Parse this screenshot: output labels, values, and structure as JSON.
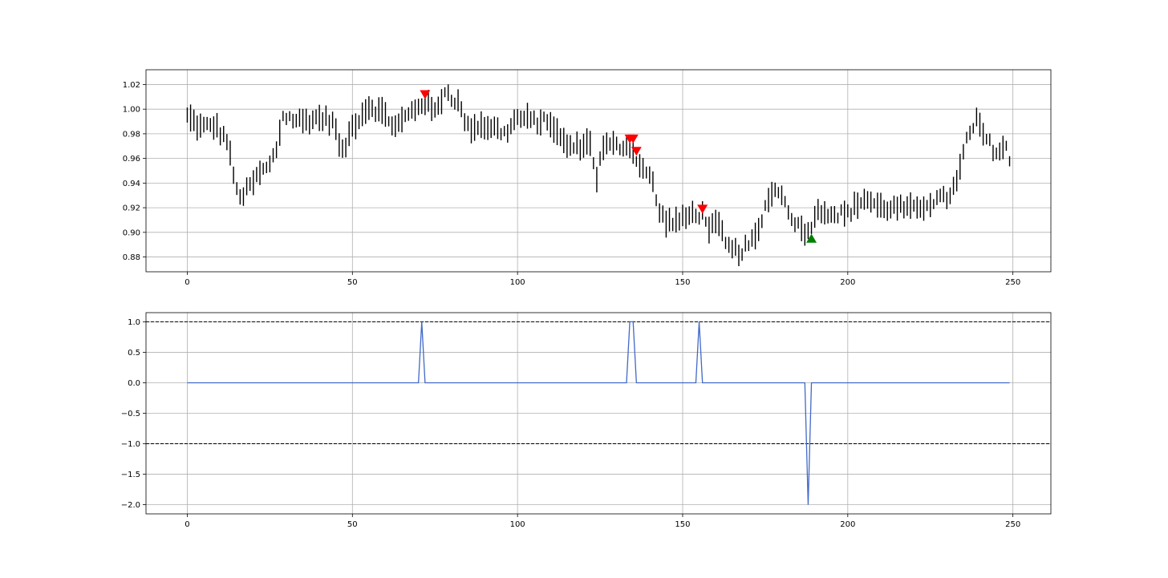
{
  "chart_data": [
    {
      "type": "ohlc",
      "xlim": [
        -12.5,
        261.5
      ],
      "ylim": [
        0.868,
        1.032
      ],
      "xticks": [
        0,
        50,
        100,
        150,
        200,
        250
      ],
      "yticks": [
        0.88,
        0.9,
        0.92,
        0.94,
        0.96,
        0.98,
        1.0,
        1.02
      ],
      "ytick_labels": [
        "0.88",
        "0.90",
        "0.92",
        "0.94",
        "0.96",
        "0.98",
        "1.00",
        "1.02"
      ],
      "grid": true,
      "bar_color": "#000000",
      "anchors": [
        [
          0,
          0.994
        ],
        [
          4,
          0.985
        ],
        [
          8,
          0.987
        ],
        [
          12,
          0.975
        ],
        [
          15,
          0.933
        ],
        [
          17,
          0.93
        ],
        [
          22,
          0.948
        ],
        [
          25,
          0.954
        ],
        [
          27,
          0.968
        ],
        [
          29,
          0.995
        ],
        [
          32,
          0.992
        ],
        [
          35,
          0.99
        ],
        [
          40,
          0.993
        ],
        [
          44,
          0.99
        ],
        [
          47,
          0.964
        ],
        [
          50,
          0.986
        ],
        [
          55,
          1.003
        ],
        [
          60,
          0.995
        ],
        [
          63,
          0.985
        ],
        [
          66,
          0.993
        ],
        [
          70,
          1.003
        ],
        [
          72,
          1.006
        ],
        [
          75,
          0.997
        ],
        [
          78,
          1.015
        ],
        [
          82,
          1.005
        ],
        [
          85,
          0.985
        ],
        [
          88,
          0.987
        ],
        [
          92,
          0.986
        ],
        [
          96,
          0.98
        ],
        [
          100,
          0.993
        ],
        [
          105,
          0.99
        ],
        [
          110,
          0.99
        ],
        [
          113,
          0.975
        ],
        [
          117,
          0.968
        ],
        [
          120,
          0.972
        ],
        [
          122,
          0.972
        ],
        [
          124,
          0.945
        ],
        [
          126,
          0.97
        ],
        [
          130,
          0.97
        ],
        [
          134,
          0.97
        ],
        [
          136,
          0.96
        ],
        [
          138,
          0.952
        ],
        [
          141,
          0.94
        ],
        [
          143,
          0.915
        ],
        [
          146,
          0.908
        ],
        [
          150,
          0.91
        ],
        [
          153,
          0.915
        ],
        [
          156,
          0.915
        ],
        [
          158,
          0.905
        ],
        [
          161,
          0.905
        ],
        [
          163,
          0.89
        ],
        [
          165,
          0.885
        ],
        [
          168,
          0.885
        ],
        [
          171,
          0.892
        ],
        [
          173,
          0.9
        ],
        [
          176,
          0.93
        ],
        [
          179,
          0.935
        ],
        [
          182,
          0.918
        ],
        [
          185,
          0.905
        ],
        [
          188,
          0.9
        ],
        [
          190,
          0.915
        ],
        [
          193,
          0.918
        ],
        [
          196,
          0.915
        ],
        [
          200,
          0.915
        ],
        [
          205,
          0.928
        ],
        [
          210,
          0.92
        ],
        [
          215,
          0.92
        ],
        [
          220,
          0.918
        ],
        [
          225,
          0.925
        ],
        [
          230,
          0.928
        ],
        [
          233,
          0.94
        ],
        [
          236,
          0.975
        ],
        [
          239,
          0.99
        ],
        [
          242,
          0.975
        ],
        [
          245,
          0.965
        ],
        [
          248,
          0.97
        ],
        [
          249,
          0.955
        ]
      ],
      "sell_signals": [
        {
          "x": 72,
          "y": 1.012
        },
        {
          "x": 134,
          "y": 0.976
        },
        {
          "x": 135,
          "y": 0.976
        },
        {
          "x": 136,
          "y": 0.966
        },
        {
          "x": 156,
          "y": 0.919
        }
      ],
      "buy_signals": [
        {
          "x": 189,
          "y": 0.895
        }
      ],
      "sell_color": "#ff0000",
      "buy_color": "#008000"
    },
    {
      "type": "line",
      "xlim": [
        -12.5,
        261.5
      ],
      "ylim": [
        -2.15,
        1.15
      ],
      "xticks": [
        0,
        50,
        100,
        150,
        200,
        250
      ],
      "yticks": [
        1.0,
        0.5,
        0.0,
        -0.5,
        -1.0,
        -1.5,
        -2.0
      ],
      "ytick_labels": [
        "1.0",
        "0.5",
        "0.0",
        "−0.5",
        "−1.0",
        "−1.5",
        "−2.0"
      ],
      "grid": true,
      "x_start": 0,
      "x_end": 249,
      "baseline": 0,
      "impulses": [
        {
          "x": 71,
          "value": 1
        },
        {
          "x": 134,
          "value": 1
        },
        {
          "x": 135,
          "value": 1
        },
        {
          "x": 155,
          "value": 1
        },
        {
          "x": 188,
          "value": -2
        }
      ],
      "hlines": [
        1.0,
        -1.0
      ],
      "hline_style": "dashed",
      "hline_color": "#000000",
      "line_color": "#4169c8"
    }
  ]
}
